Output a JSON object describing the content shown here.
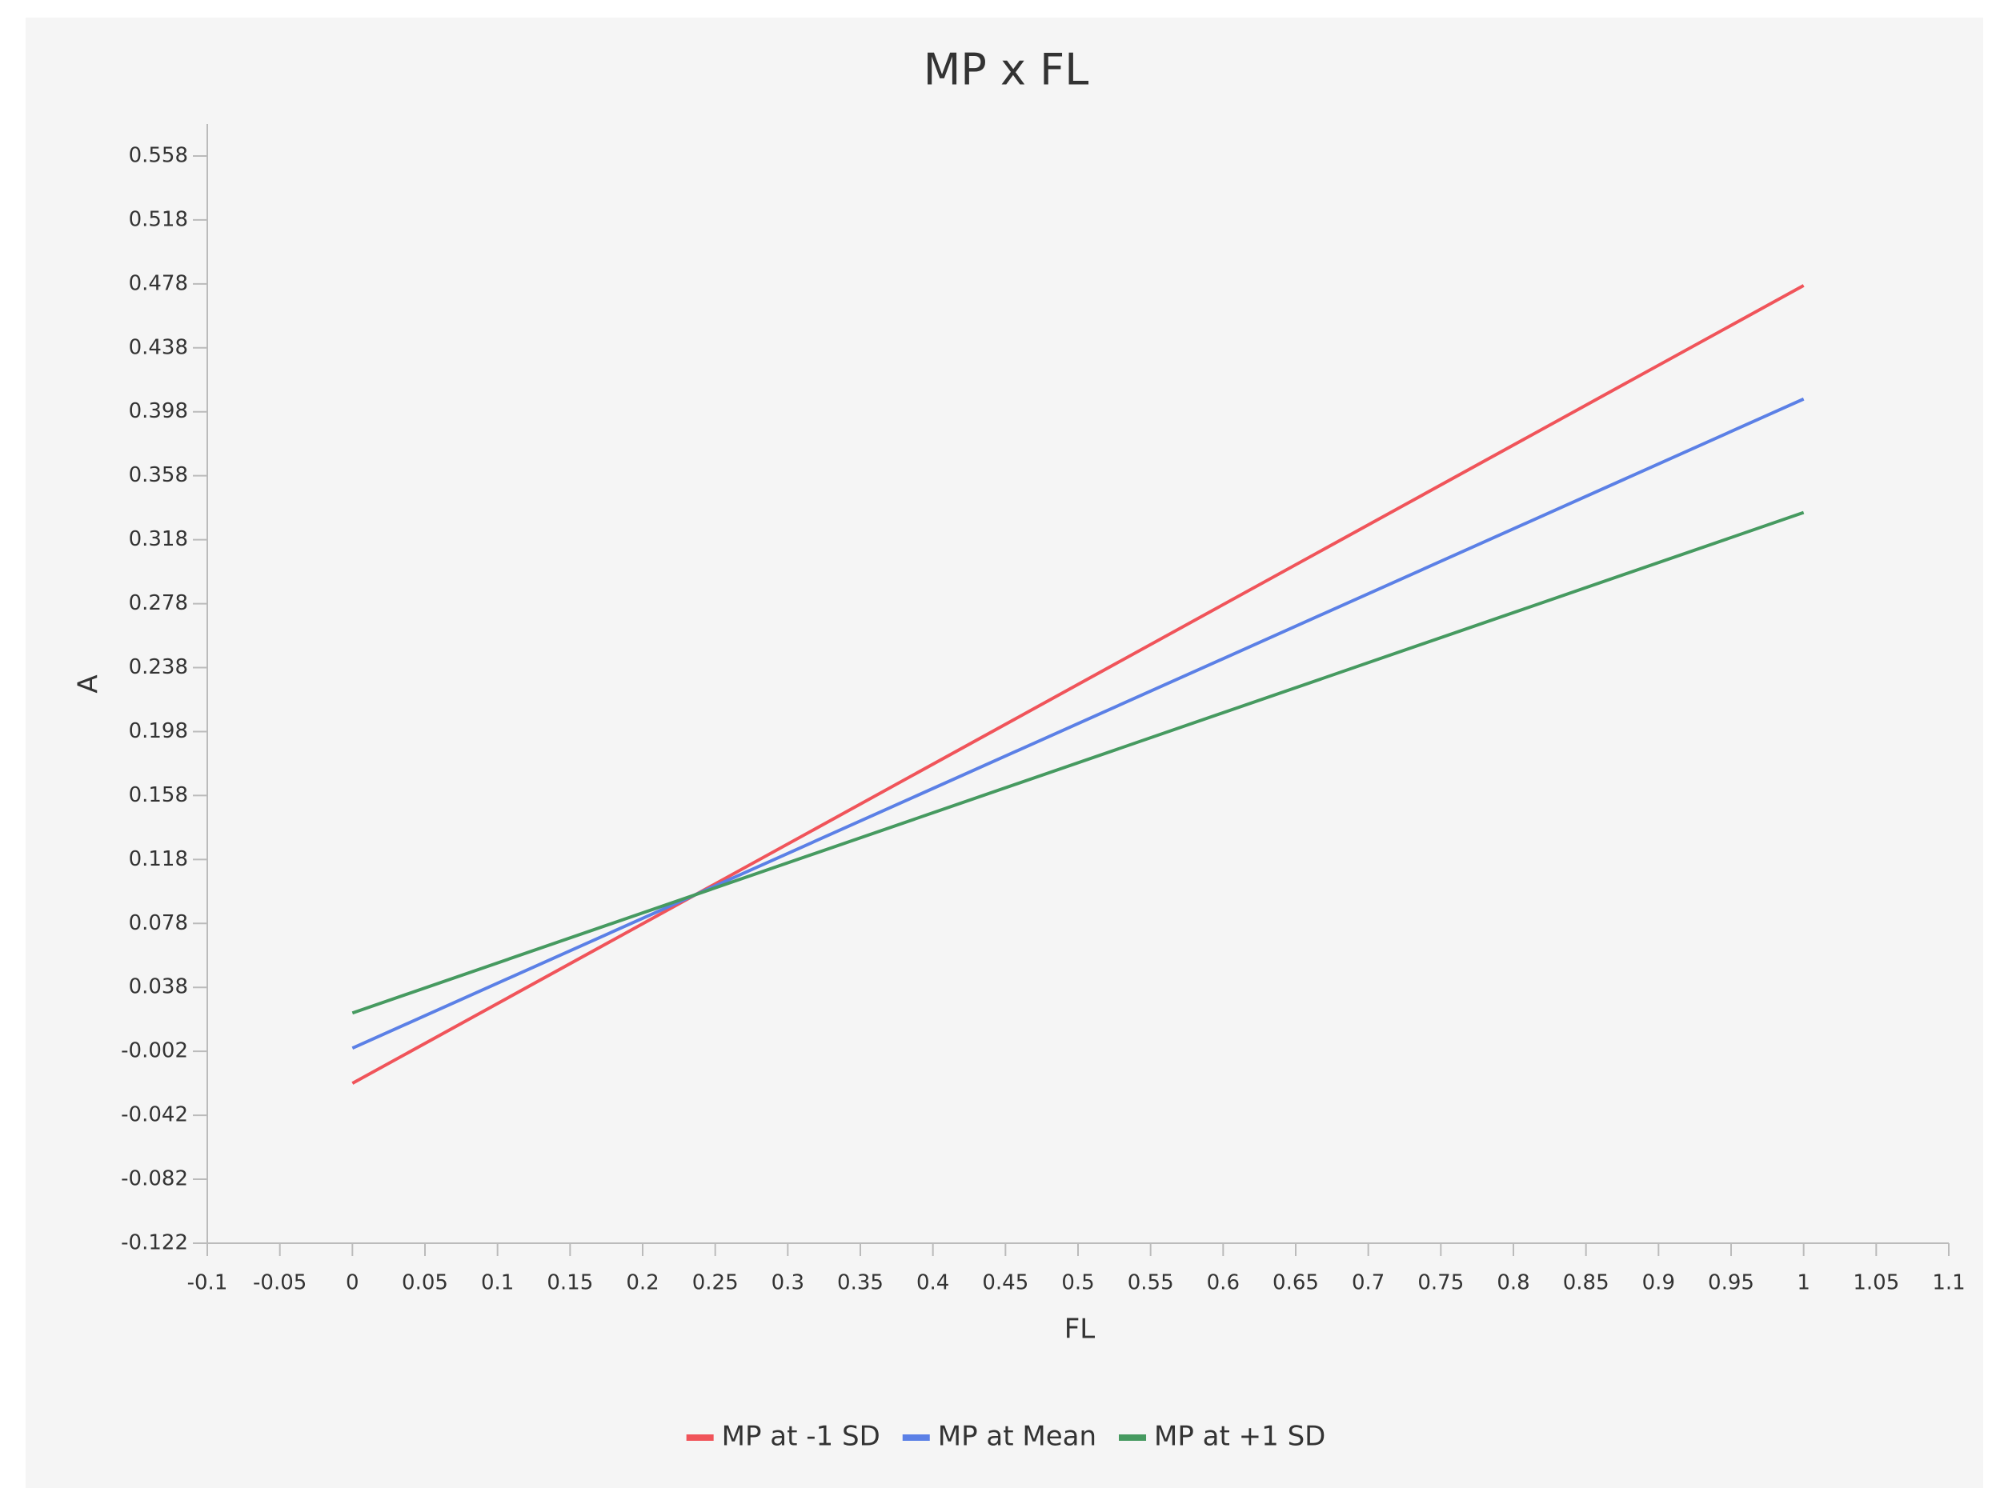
{
  "chart_data": {
    "type": "line",
    "title": "MP x FL",
    "xlabel": "FL",
    "ylabel": "A",
    "x": [
      0,
      1
    ],
    "series": [
      {
        "name": "MP at -1 SD",
        "color": "#f0545a",
        "values": [
          -0.022,
          0.477
        ]
      },
      {
        "name": "MP at Mean",
        "color": "#5b80e6",
        "values": [
          0.0,
          0.406
        ]
      },
      {
        "name": "MP at +1 SD",
        "color": "#469a60",
        "values": [
          0.022,
          0.335
        ]
      }
    ],
    "xlim": [
      -0.1,
      1.1
    ],
    "xticks": [
      -0.1,
      -0.05,
      0,
      0.05,
      0.1,
      0.15,
      0.2,
      0.25,
      0.3,
      0.35,
      0.4,
      0.45,
      0.5,
      0.55,
      0.6,
      0.65,
      0.7,
      0.75,
      0.8,
      0.85,
      0.9,
      0.95,
      1,
      1.05,
      1.1
    ],
    "ylim": [
      -0.122,
      0.578
    ],
    "yticks": [
      -0.122,
      -0.082,
      -0.042,
      -0.002,
      0.038,
      0.078,
      0.118,
      0.158,
      0.198,
      0.238,
      0.278,
      0.318,
      0.358,
      0.398,
      0.438,
      0.478,
      0.518,
      0.558
    ],
    "grid": false,
    "legend": "bottom"
  }
}
